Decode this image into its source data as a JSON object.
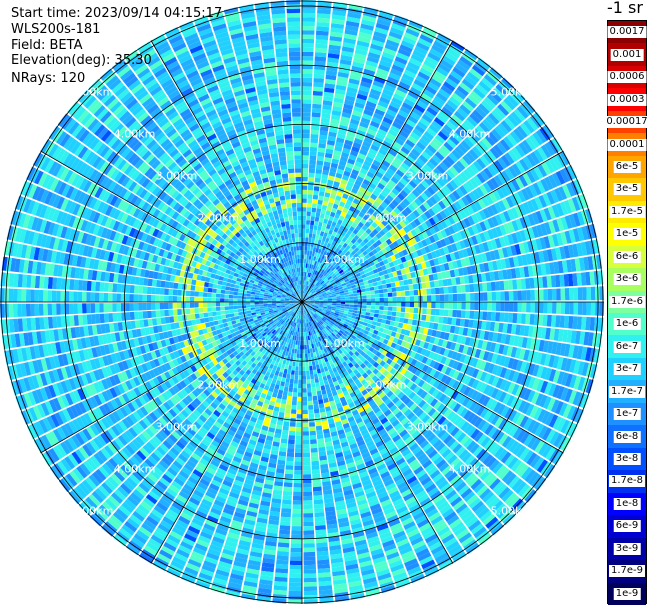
{
  "header": {
    "start_time": "Start time: 2023/09/14 04:15:17",
    "instrument": "WLS200s-181",
    "field": "Field: BETA",
    "elevation": "Elevation(deg): 35.30",
    "nrays": "NRays: 120"
  },
  "colorbar": {
    "unit": "-1 sr",
    "ticks": [
      "0.0017",
      "0.001",
      "0.0006",
      "0.0003",
      "0.00017",
      "0.0001",
      "6e-5",
      "3e-5",
      "1.7e-5",
      "1e-5",
      "6e-6",
      "3e-6",
      "1.7e-6",
      "1e-6",
      "6e-7",
      "3e-7",
      "1.7e-7",
      "1e-7",
      "6e-8",
      "3e-8",
      "1.7e-8",
      "1e-8",
      "6e-9",
      "3e-9",
      "1.7e-9",
      "1e-9"
    ],
    "colors": [
      "#8b0000",
      "#b00000",
      "#d80000",
      "#ff0000",
      "#ff4000",
      "#ff7f00",
      "#ffa500",
      "#ffc800",
      "#ffeb00",
      "#ffff00",
      "#d8ff3c",
      "#a8ff60",
      "#7dffa0",
      "#50ffcc",
      "#30f0f0",
      "#20d0ff",
      "#20b0ff",
      "#1e90ff",
      "#1070ff",
      "#0050ff",
      "#0030f0",
      "#0000ff",
      "#0000d0",
      "#0000a8",
      "#000080",
      "#00005a"
    ]
  },
  "chart_data": {
    "type": "heatmap",
    "projection": "polar PPI",
    "field": "BETA",
    "elevation_deg": 35.3,
    "n_rays": 120,
    "range_ring_labels": [
      "1.00km",
      "2.00km",
      "3.00km",
      "4.00km",
      "5.00km"
    ],
    "range_rings_km": [
      1,
      2,
      3,
      4,
      5
    ],
    "max_range_km": 5.1,
    "spoke_angles_deg": [
      0,
      30,
      60,
      90,
      120,
      150,
      180,
      210,
      240,
      270,
      300,
      330
    ],
    "colorscale": "log",
    "value_range": [
      1e-09,
      0.0017
    ],
    "dominant_value_range": [
      1e-07,
      1e-06
    ],
    "enhanced_ring_km": [
      1.6,
      2.2
    ],
    "enhanced_ring_value": 1e-05
  }
}
